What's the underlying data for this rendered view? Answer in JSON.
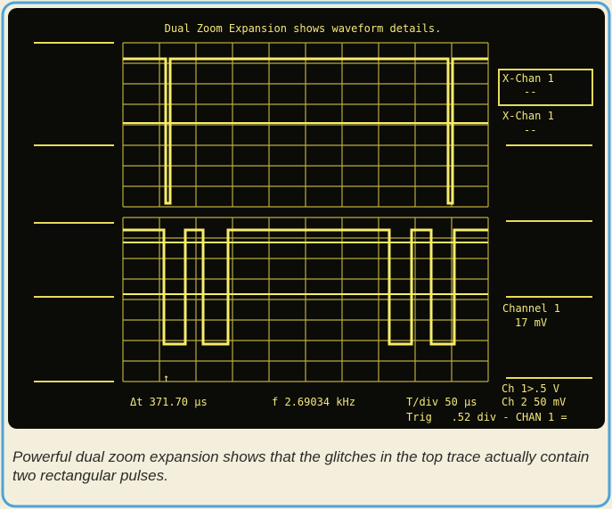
{
  "screen": {
    "title": "Dual Zoom Expansion shows waveform details.",
    "softkeys": [
      {
        "label": "X-Chan 1",
        "value": "--"
      },
      {
        "label": "X-Chan 1",
        "value": "--"
      },
      {
        "label": "Channel 1",
        "value": "17 mV"
      }
    ],
    "scale": [
      "Ch 1>.5 V",
      "Ch 2 50 mV"
    ],
    "readouts": {
      "delta_t": "Δt 371.70 µs",
      "frequency": "f 2.69034 kHz",
      "time_per_div": "T/div 50 µs",
      "trigger": "Trig   .52 div - CHAN 1 ="
    }
  },
  "caption": "Powerful dual zoom expansion shows that the glitches in the top trace actually contain two rectangular pulses."
}
